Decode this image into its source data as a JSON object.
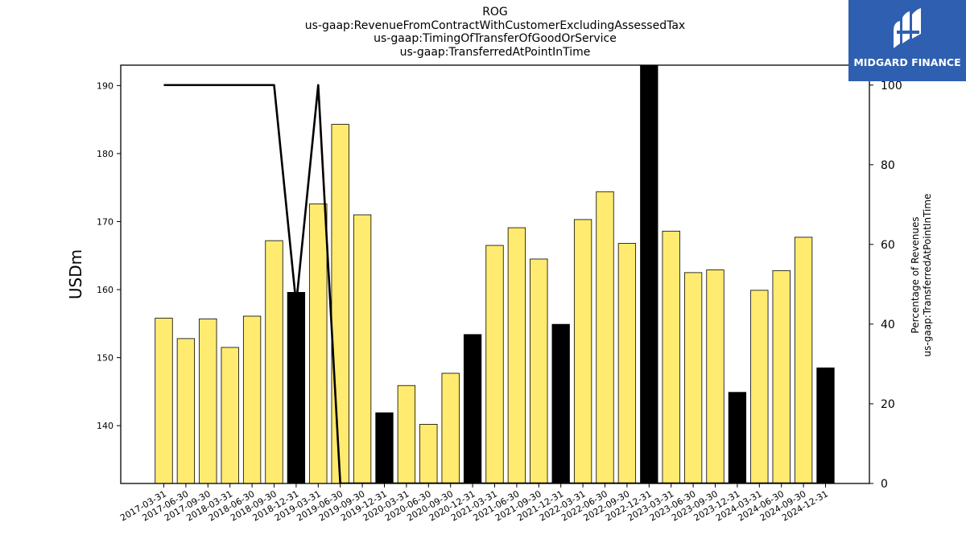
{
  "titles": {
    "line1": "ROG",
    "line2": "us-gaap:RevenueFromContractWithCustomerExcludingAssessedTax",
    "line3": "us-gaap:TimingOfTransferOfGoodOrService",
    "line4": "us-gaap:TransferredAtPointInTime"
  },
  "logo": {
    "text": "MIDGARD FINANCE",
    "bg_color": "#2f5fb0"
  },
  "chart_data": {
    "type": "bar",
    "ylabel": "USDm",
    "y2label_line1": "Percentage of Revenues",
    "y2label_line2": "us-gaap:TransferredAtPointInTime",
    "ylim": [
      131.5,
      193
    ],
    "y2lim": [
      0,
      105
    ],
    "yticks": [
      140,
      150,
      160,
      170,
      180,
      190
    ],
    "y2ticks": [
      0,
      20,
      40,
      60,
      80,
      100
    ],
    "grid": false,
    "categories": [
      "2017-03-31",
      "2017-06-30",
      "2017-09-30",
      "2018-03-31",
      "2018-06-30",
      "2018-09-30",
      "2018-12-31",
      "2019-03-31",
      "2019-06-30",
      "2019-09-30",
      "2019-12-31",
      "2020-03-31",
      "2020-06-30",
      "2020-09-30",
      "2020-12-31",
      "2021-03-31",
      "2021-06-30",
      "2021-09-30",
      "2021-12-31",
      "2022-03-31",
      "2022-06-30",
      "2022-09-30",
      "2022-12-31",
      "2023-03-31",
      "2023-06-30",
      "2023-09-30",
      "2023-12-31",
      "2024-03-31",
      "2024-06-30",
      "2024-09-30",
      "2024-12-31"
    ],
    "series": [
      {
        "type": "bar",
        "values": [
          155.8,
          152.8,
          155.7,
          151.5,
          156.1,
          167.2,
          159.6,
          172.6,
          184.3,
          171.0,
          141.9,
          145.9,
          140.2,
          147.7,
          153.4,
          166.5,
          169.1,
          164.5,
          154.9,
          170.3,
          174.4,
          166.8,
          193.0,
          168.6,
          162.5,
          162.9,
          144.9,
          159.9,
          162.8,
          167.7,
          148.5
        ],
        "colors": [
          "#ffeb70",
          "#ffeb70",
          "#ffeb70",
          "#ffeb70",
          "#ffeb70",
          "#ffeb70",
          "#000000",
          "#ffeb70",
          "#ffeb70",
          "#ffeb70",
          "#000000",
          "#ffeb70",
          "#ffeb70",
          "#ffeb70",
          "#000000",
          "#ffeb70",
          "#ffeb70",
          "#ffeb70",
          "#000000",
          "#ffeb70",
          "#ffeb70",
          "#ffeb70",
          "#000000",
          "#ffeb70",
          "#ffeb70",
          "#ffeb70",
          "#000000",
          "#ffeb70",
          "#ffeb70",
          "#ffeb70",
          "#000000"
        ]
      },
      {
        "type": "line",
        "axis": "right",
        "color": "#000000",
        "values": [
          100,
          100,
          100,
          100,
          100,
          100,
          45,
          100,
          0,
          0,
          0,
          0,
          0,
          0,
          0,
          0,
          0,
          0,
          0,
          0,
          0,
          0,
          0,
          0,
          0,
          0,
          0,
          0,
          0,
          0,
          0
        ]
      }
    ]
  }
}
